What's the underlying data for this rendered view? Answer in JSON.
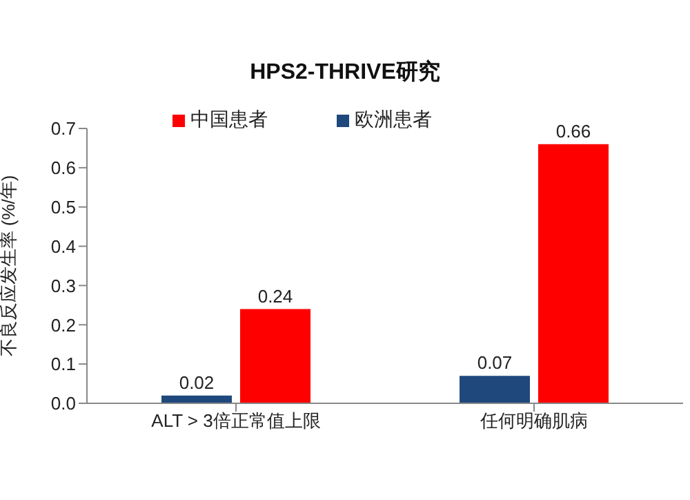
{
  "chart_data": {
    "type": "bar",
    "title": "HPS2-THRIVE研究",
    "ylabel": "不良反应发生率 (%/年)",
    "categories": [
      "ALT > 3倍正常值上限",
      "任何明确肌病"
    ],
    "series": [
      {
        "name": "欧洲患者",
        "color": "#1f497d",
        "values": [
          0.02,
          0.07
        ]
      },
      {
        "name": "中国患者",
        "color": "#ff0000",
        "values": [
          0.24,
          0.66
        ]
      }
    ],
    "ylim": [
      0,
      0.7
    ],
    "yticks": [
      "0.0",
      "0.1",
      "0.2",
      "0.3",
      "0.4",
      "0.5",
      "0.6",
      "0.7"
    ],
    "grid": false,
    "legend": "top left",
    "data_labels": true
  }
}
